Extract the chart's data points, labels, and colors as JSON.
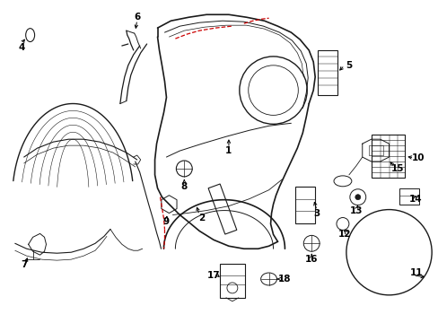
{
  "bg_color": "#ffffff",
  "line_color": "#1a1a1a",
  "red_color": "#cc0000",
  "fig_w": 4.89,
  "fig_h": 3.6,
  "dpi": 100
}
